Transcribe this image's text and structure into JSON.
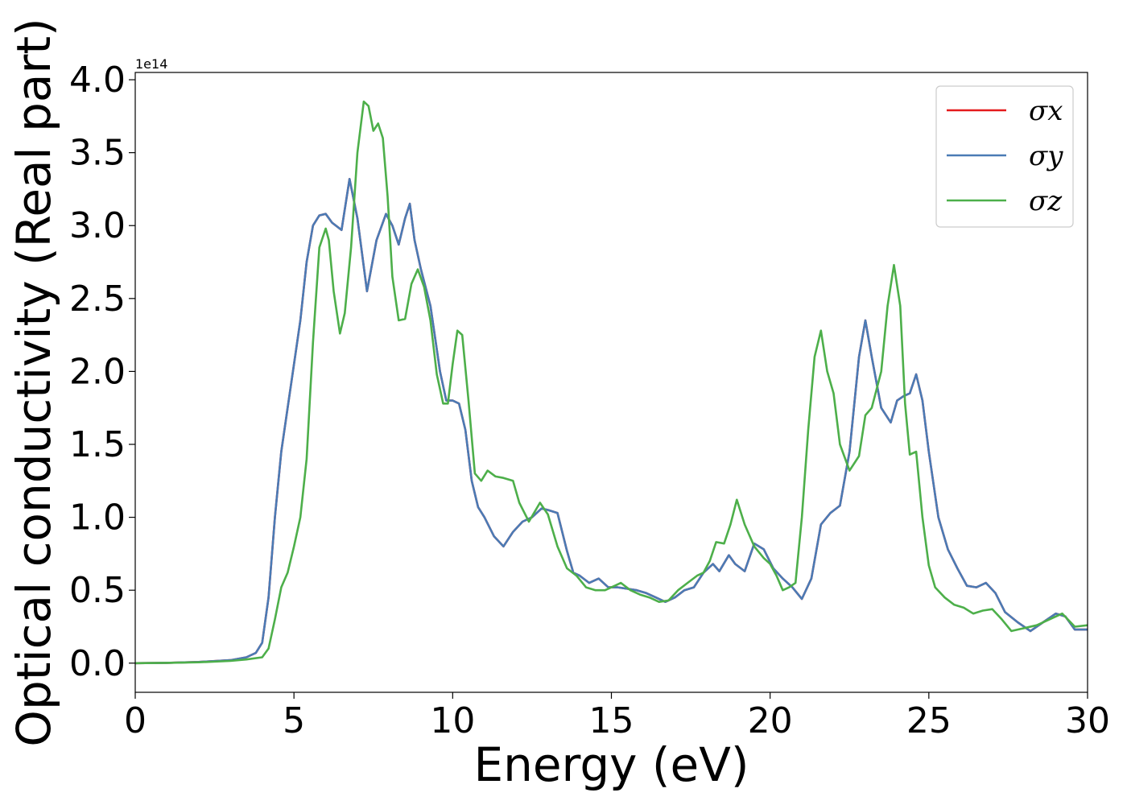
{
  "chart_data": {
    "type": "line",
    "xlabel": "Energy (eV)",
    "ylabel": "Optical conductivity (Real part)",
    "y_offset_text": "1e14",
    "xlim": [
      0,
      30
    ],
    "ylim": [
      -0.2,
      4.05
    ],
    "x_ticks": [
      0,
      5,
      10,
      15,
      20,
      25,
      30
    ],
    "x_tick_labels": [
      "0",
      "5",
      "10",
      "15",
      "20",
      "25",
      "30"
    ],
    "y_ticks": [
      0.0,
      0.5,
      1.0,
      1.5,
      2.0,
      2.5,
      3.0,
      3.5,
      4.0
    ],
    "y_tick_labels": [
      "0.0",
      "0.5",
      "1.0",
      "1.5",
      "2.0",
      "2.5",
      "3.0",
      "3.5",
      "4.0"
    ],
    "grid": false,
    "legend_position": "top-right",
    "series": [
      {
        "name": "σx",
        "color": "#e41a1c",
        "x": [
          0,
          1,
          2,
          3,
          3.5,
          3.8,
          4.0,
          4.2,
          4.4,
          4.6,
          4.8,
          5.0,
          5.2,
          5.4,
          5.6,
          5.8,
          6.0,
          6.2,
          6.5,
          6.75,
          7.0,
          7.3,
          7.6,
          7.9,
          8.1,
          8.3,
          8.5,
          8.65,
          8.8,
          9.0,
          9.3,
          9.6,
          9.8,
          10.0,
          10.2,
          10.4,
          10.6,
          10.8,
          11.0,
          11.3,
          11.6,
          11.9,
          12.2,
          12.5,
          12.8,
          13.0,
          13.3,
          13.6,
          13.8,
          14.0,
          14.3,
          14.6,
          14.9,
          15.2,
          15.5,
          15.8,
          16.1,
          16.4,
          16.7,
          17.0,
          17.3,
          17.6,
          17.9,
          18.2,
          18.4,
          18.7,
          18.9,
          19.2,
          19.5,
          19.8,
          20.1,
          20.4,
          20.7,
          21.0,
          21.3,
          21.6,
          21.9,
          22.2,
          22.5,
          22.8,
          23.0,
          23.2,
          23.5,
          23.8,
          24.0,
          24.2,
          24.4,
          24.6,
          24.8,
          25.0,
          25.3,
          25.6,
          25.9,
          26.2,
          26.5,
          26.8,
          27.1,
          27.4,
          27.8,
          28.2,
          28.6,
          29.0,
          29.3,
          29.6,
          30
        ],
        "y": [
          0.0,
          0.002,
          0.008,
          0.02,
          0.04,
          0.07,
          0.14,
          0.45,
          1.0,
          1.45,
          1.75,
          2.05,
          2.35,
          2.75,
          3.0,
          3.07,
          3.08,
          3.02,
          2.97,
          3.32,
          3.05,
          2.55,
          2.9,
          3.08,
          3.0,
          2.87,
          3.05,
          3.15,
          2.9,
          2.7,
          2.45,
          2.0,
          1.8,
          1.8,
          1.78,
          1.6,
          1.25,
          1.07,
          1.0,
          0.87,
          0.8,
          0.9,
          0.97,
          1.0,
          1.06,
          1.05,
          1.03,
          0.77,
          0.62,
          0.6,
          0.55,
          0.58,
          0.52,
          0.52,
          0.51,
          0.5,
          0.48,
          0.45,
          0.42,
          0.45,
          0.5,
          0.52,
          0.62,
          0.68,
          0.63,
          0.74,
          0.68,
          0.63,
          0.82,
          0.78,
          0.65,
          0.58,
          0.52,
          0.44,
          0.58,
          0.95,
          1.03,
          1.08,
          1.45,
          2.1,
          2.35,
          2.1,
          1.75,
          1.65,
          1.8,
          1.83,
          1.85,
          1.98,
          1.8,
          1.45,
          1.0,
          0.78,
          0.65,
          0.53,
          0.52,
          0.55,
          0.48,
          0.35,
          0.28,
          0.22,
          0.28,
          0.34,
          0.32,
          0.23,
          0.23
        ]
      },
      {
        "name": "σy",
        "color": "#4a7bb5",
        "x": [
          0,
          1,
          2,
          3,
          3.5,
          3.8,
          4.0,
          4.2,
          4.4,
          4.6,
          4.8,
          5.0,
          5.2,
          5.4,
          5.6,
          5.8,
          6.0,
          6.2,
          6.5,
          6.75,
          7.0,
          7.3,
          7.6,
          7.9,
          8.1,
          8.3,
          8.5,
          8.65,
          8.8,
          9.0,
          9.3,
          9.6,
          9.8,
          10.0,
          10.2,
          10.4,
          10.6,
          10.8,
          11.0,
          11.3,
          11.6,
          11.9,
          12.2,
          12.5,
          12.8,
          13.0,
          13.3,
          13.6,
          13.8,
          14.0,
          14.3,
          14.6,
          14.9,
          15.2,
          15.5,
          15.8,
          16.1,
          16.4,
          16.7,
          17.0,
          17.3,
          17.6,
          17.9,
          18.2,
          18.4,
          18.7,
          18.9,
          19.2,
          19.5,
          19.8,
          20.1,
          20.4,
          20.7,
          21.0,
          21.3,
          21.6,
          21.9,
          22.2,
          22.5,
          22.8,
          23.0,
          23.2,
          23.5,
          23.8,
          24.0,
          24.2,
          24.4,
          24.6,
          24.8,
          25.0,
          25.3,
          25.6,
          25.9,
          26.2,
          26.5,
          26.8,
          27.1,
          27.4,
          27.8,
          28.2,
          28.6,
          29.0,
          29.3,
          29.6,
          30
        ],
        "y": [
          0.0,
          0.002,
          0.008,
          0.02,
          0.04,
          0.07,
          0.14,
          0.45,
          1.0,
          1.45,
          1.75,
          2.05,
          2.35,
          2.75,
          3.0,
          3.07,
          3.08,
          3.02,
          2.97,
          3.32,
          3.05,
          2.55,
          2.9,
          3.08,
          3.0,
          2.87,
          3.05,
          3.15,
          2.9,
          2.7,
          2.45,
          2.0,
          1.8,
          1.8,
          1.78,
          1.6,
          1.25,
          1.07,
          1.0,
          0.87,
          0.8,
          0.9,
          0.97,
          1.0,
          1.06,
          1.05,
          1.03,
          0.77,
          0.62,
          0.6,
          0.55,
          0.58,
          0.52,
          0.52,
          0.51,
          0.5,
          0.48,
          0.45,
          0.42,
          0.45,
          0.5,
          0.52,
          0.62,
          0.68,
          0.63,
          0.74,
          0.68,
          0.63,
          0.82,
          0.78,
          0.65,
          0.58,
          0.52,
          0.44,
          0.58,
          0.95,
          1.03,
          1.08,
          1.45,
          2.1,
          2.35,
          2.1,
          1.75,
          1.65,
          1.8,
          1.83,
          1.85,
          1.98,
          1.8,
          1.45,
          1.0,
          0.78,
          0.65,
          0.53,
          0.52,
          0.55,
          0.48,
          0.35,
          0.28,
          0.22,
          0.28,
          0.34,
          0.32,
          0.23,
          0.23
        ]
      },
      {
        "name": "σz",
        "color": "#4daf4a",
        "x": [
          0,
          1,
          2,
          3,
          3.5,
          4.0,
          4.2,
          4.4,
          4.6,
          4.8,
          5.0,
          5.2,
          5.4,
          5.6,
          5.8,
          6.0,
          6.1,
          6.25,
          6.45,
          6.6,
          6.8,
          7.0,
          7.2,
          7.35,
          7.5,
          7.65,
          7.8,
          7.95,
          8.1,
          8.3,
          8.5,
          8.7,
          8.9,
          9.1,
          9.3,
          9.5,
          9.7,
          9.85,
          10.0,
          10.15,
          10.3,
          10.5,
          10.7,
          10.9,
          11.1,
          11.35,
          11.6,
          11.9,
          12.1,
          12.4,
          12.75,
          13.0,
          13.3,
          13.6,
          13.9,
          14.2,
          14.5,
          14.8,
          15.0,
          15.3,
          15.6,
          15.9,
          16.2,
          16.5,
          16.8,
          17.1,
          17.4,
          17.7,
          17.9,
          18.1,
          18.3,
          18.55,
          18.75,
          18.95,
          19.2,
          19.5,
          19.8,
          20.0,
          20.2,
          20.4,
          20.6,
          20.8,
          21.0,
          21.2,
          21.4,
          21.6,
          21.8,
          22.0,
          22.2,
          22.5,
          22.8,
          23.0,
          23.2,
          23.5,
          23.7,
          23.9,
          24.1,
          24.25,
          24.4,
          24.6,
          24.8,
          25.0,
          25.2,
          25.5,
          25.8,
          26.1,
          26.4,
          26.7,
          27.0,
          27.3,
          27.6,
          28.0,
          28.4,
          28.8,
          29.2,
          29.6,
          30
        ],
        "y": [
          0.0,
          0.002,
          0.006,
          0.015,
          0.025,
          0.04,
          0.1,
          0.3,
          0.52,
          0.62,
          0.8,
          1.0,
          1.4,
          2.2,
          2.85,
          2.98,
          2.9,
          2.55,
          2.26,
          2.4,
          2.85,
          3.5,
          3.85,
          3.82,
          3.65,
          3.7,
          3.6,
          3.2,
          2.65,
          2.35,
          2.36,
          2.6,
          2.7,
          2.58,
          2.35,
          1.98,
          1.78,
          1.78,
          2.05,
          2.28,
          2.25,
          1.8,
          1.3,
          1.25,
          1.32,
          1.28,
          1.27,
          1.25,
          1.1,
          0.97,
          1.1,
          1.02,
          0.8,
          0.65,
          0.6,
          0.52,
          0.5,
          0.5,
          0.52,
          0.55,
          0.5,
          0.47,
          0.45,
          0.42,
          0.43,
          0.5,
          0.55,
          0.6,
          0.62,
          0.7,
          0.83,
          0.82,
          0.95,
          1.12,
          0.95,
          0.8,
          0.72,
          0.68,
          0.6,
          0.5,
          0.52,
          0.55,
          1.0,
          1.6,
          2.1,
          2.28,
          2.0,
          1.85,
          1.5,
          1.32,
          1.42,
          1.7,
          1.75,
          2.0,
          2.45,
          2.73,
          2.45,
          1.78,
          1.43,
          1.45,
          1.0,
          0.67,
          0.52,
          0.45,
          0.4,
          0.38,
          0.34,
          0.36,
          0.37,
          0.3,
          0.22,
          0.24,
          0.26,
          0.3,
          0.34,
          0.25,
          0.26
        ]
      }
    ]
  }
}
